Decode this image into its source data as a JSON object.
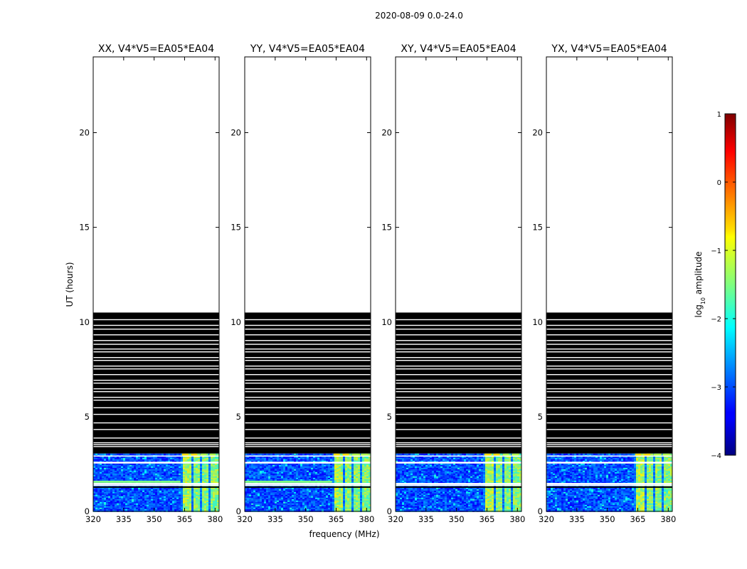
{
  "chart_data": {
    "type": "heatmap",
    "suptitle": "2020-08-09 0.0-24.0",
    "xlabel": "frequency (MHz)",
    "ylabel": "UT (hours)",
    "xlim": [
      320,
      382
    ],
    "ylim": [
      0,
      24
    ],
    "xticks": [
      320,
      335,
      350,
      365,
      380
    ],
    "yticks": [
      0,
      5,
      10,
      15,
      20
    ],
    "data_end_hours": 10.5,
    "valid_data_hours": [
      0,
      3.05
    ],
    "flagged_data_hours": [
      3.05,
      10.5
    ],
    "rfi_band_mhz": [
      363,
      381
    ],
    "panels": [
      {
        "title": "XX, V4*V5=EA05*EA04",
        "polarization": "XX"
      },
      {
        "title": "YY, V4*V5=EA05*EA04",
        "polarization": "YY"
      },
      {
        "title": "XY, V4*V5=EA05*EA04",
        "polarization": "XY"
      },
      {
        "title": "YX, V4*V5=EA05*EA04",
        "polarization": "YX"
      }
    ],
    "colorbar": {
      "label": "log10 amplitude",
      "label_main": "log",
      "label_sub": "10",
      "label_rest": " amplitude",
      "range": [
        -4,
        1
      ],
      "ticks": [
        -4,
        -3,
        -2,
        -1,
        0,
        1
      ],
      "tick_labels": [
        "−4",
        "−3",
        "−2",
        "−1",
        "0",
        "1"
      ],
      "colormap": "jet"
    }
  }
}
